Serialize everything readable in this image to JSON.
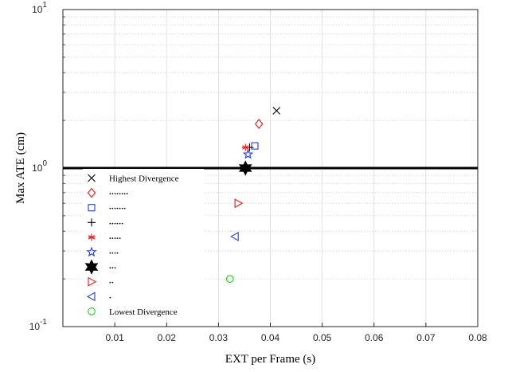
{
  "chart_data": {
    "type": "scatter",
    "xlabel": "EXT per Frame (s)",
    "ylabel": "Max ATE (cm)",
    "xlim": [
      0,
      0.08
    ],
    "ylim": [
      0.1,
      10
    ],
    "yscale": "log",
    "grid": true,
    "x_ticks": [
      "0.01",
      "0.02",
      "0.03",
      "0.04",
      "0.05",
      "0.06",
      "0.07",
      "0.08"
    ],
    "y_ticks": [
      {
        "base": "10",
        "exp": "-1",
        "value": 0.1
      },
      {
        "base": "10",
        "exp": "0",
        "value": 1
      },
      {
        "base": "10",
        "exp": "1",
        "value": 10
      }
    ],
    "reference_line_y": 1.0,
    "legend_position": "lower-left",
    "series": [
      {
        "marker": "x",
        "color": "#000000",
        "legend": "Highest Divergence",
        "x": 0.0412,
        "y": 2.3
      },
      {
        "marker": "diamond",
        "color": "#e41a1c",
        "legend": "........",
        "x": 0.0378,
        "y": 1.9
      },
      {
        "marker": "square",
        "color": "#1f3fd1",
        "legend": ".......",
        "x": 0.037,
        "y": 1.38
      },
      {
        "marker": "plus",
        "color": "#000000",
        "legend": "......",
        "x": 0.036,
        "y": 1.35
      },
      {
        "marker": "asterisk",
        "color": "#e41a1c",
        "legend": ".....",
        "x": 0.0352,
        "y": 1.35
      },
      {
        "marker": "pentagram",
        "color": "#1f3fd1",
        "legend": "....",
        "x": 0.0357,
        "y": 1.22
      },
      {
        "marker": "hexagram",
        "color": "#000000",
        "legend": "...",
        "x": 0.0352,
        "y": 1.0
      },
      {
        "marker": "triangle-right",
        "color": "#e41a1c",
        "legend": "..",
        "x": 0.0338,
        "y": 0.6
      },
      {
        "marker": "triangle-left",
        "color": "#1f3fd1",
        "legend": ".",
        "x": 0.0332,
        "y": 0.37
      },
      {
        "marker": "circle",
        "color": "#22cc22",
        "legend": "Lowest Divergence",
        "x": 0.0322,
        "y": 0.2
      }
    ]
  }
}
